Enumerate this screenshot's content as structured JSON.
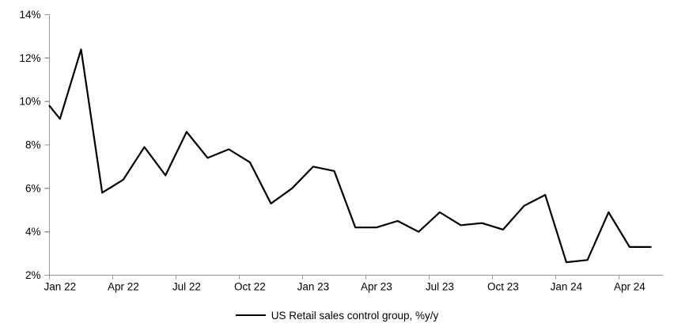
{
  "chart_data": {
    "type": "line",
    "title": "",
    "xlabel": "",
    "ylabel": "",
    "ylim": [
      2,
      14
    ],
    "grid": false,
    "legend_position": "bottom",
    "axis_color": "#969696",
    "line_color": "#000000",
    "y_ticks": [
      "2%",
      "4%",
      "6%",
      "8%",
      "10%",
      "12%",
      "14%"
    ],
    "y_tick_values": [
      2,
      4,
      6,
      8,
      10,
      12,
      14
    ],
    "x_tick_labels": [
      "Jan 22",
      "Apr 22",
      "Jul 22",
      "Oct 22",
      "Jan 23",
      "Apr 23",
      "Jul 23",
      "Oct 23",
      "Jan 24",
      "Apr 24"
    ],
    "x_tick_every": 3,
    "categories": [
      "Jan 22",
      "Feb 22",
      "Mar 22",
      "Apr 22",
      "May 22",
      "Jun 22",
      "Jul 22",
      "Aug 22",
      "Sep 22",
      "Oct 22",
      "Nov 22",
      "Dec 22",
      "Jan 23",
      "Feb 23",
      "Mar 23",
      "Apr 23",
      "May 23",
      "Jun 23",
      "Jul 23",
      "Aug 23",
      "Sep 23",
      "Oct 23",
      "Nov 23",
      "Dec 23",
      "Jan 24",
      "Feb 24",
      "Mar 24",
      "Apr 24",
      "May 24"
    ],
    "series": [
      {
        "name": "US Retail sales control group, %y/y",
        "color": "#000000",
        "left_edge_entry_value": 9.8,
        "values": [
          9.2,
          12.4,
          5.8,
          6.4,
          7.9,
          6.6,
          8.6,
          7.4,
          7.8,
          7.2,
          5.3,
          6.0,
          7.0,
          6.8,
          4.2,
          4.2,
          4.5,
          4.0,
          4.9,
          4.3,
          4.4,
          4.1,
          5.2,
          5.7,
          2.6,
          2.7,
          4.9,
          3.3,
          3.3
        ]
      }
    ]
  },
  "legend": {
    "label": "US Retail sales control group, %y/y"
  }
}
